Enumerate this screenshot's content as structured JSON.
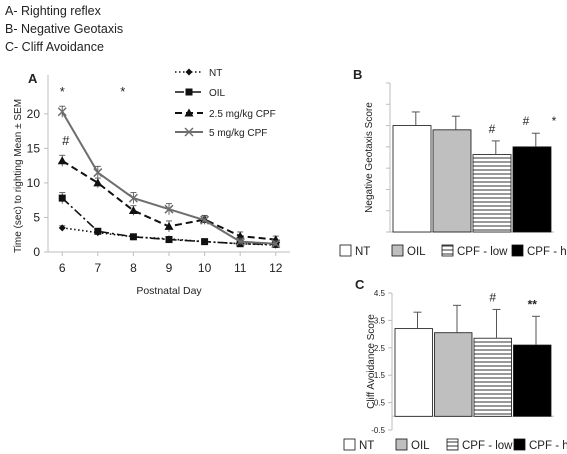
{
  "captions": [
    "A- Righting reflex",
    "B- Negative Geotaxis",
    "C- Cliff Avoidance"
  ],
  "chart_data": [
    {
      "type": "line",
      "panel_label": "A",
      "title": "",
      "xlabel": "Postnatal Day",
      "ylabel": "Time (sec) to righting Mean ± SEM",
      "x": [
        6,
        7,
        8,
        9,
        10,
        11,
        12
      ],
      "xlim": [
        5.6,
        12.4
      ],
      "ylim": [
        0,
        22
      ],
      "yticks": [
        0,
        5,
        10,
        15,
        20
      ],
      "legend_position": "top-right",
      "series": [
        {
          "name": "NT",
          "marker": "diamond",
          "line_style": "dotted",
          "values": [
            3.5,
            2.8,
            2.2,
            1.9,
            1.5,
            1.2,
            1.0
          ],
          "errors": [
            0.3,
            0.3,
            0.3,
            0.3,
            0.3,
            0.3,
            0.3
          ]
        },
        {
          "name": "OIL",
          "marker": "square",
          "line_style": "dashdot",
          "values": [
            7.8,
            3.0,
            2.2,
            1.8,
            1.5,
            1.2,
            1.1
          ],
          "errors": [
            0.8,
            0.4,
            0.3,
            0.3,
            0.3,
            0.2,
            0.2
          ]
        },
        {
          "name": "2.5 mg/kg CPF",
          "marker": "triangle",
          "line_style": "dashed",
          "values": [
            13.2,
            10.0,
            6.0,
            3.7,
            4.7,
            2.3,
            1.8
          ],
          "errors": [
            0.8,
            0.7,
            0.7,
            0.8,
            0.6,
            0.6,
            0.5
          ]
        },
        {
          "name": "5 mg/kg CPF",
          "marker": "x",
          "line_style": "solid",
          "values": [
            20.3,
            11.5,
            7.8,
            6.2,
            4.6,
            1.5,
            1.2
          ],
          "errors": [
            0.8,
            0.9,
            0.8,
            0.8,
            0.6,
            0.5,
            0.4
          ]
        }
      ],
      "annotations": [
        {
          "text": "*",
          "x": 6,
          "y": 23.3
        },
        {
          "text": "*",
          "x": 7.7,
          "y": 23.3
        },
        {
          "text": "#",
          "x": 6.1,
          "y": 16.2
        }
      ]
    },
    {
      "type": "bar",
      "panel_label": "B",
      "title": "",
      "ylabel": "Negative Geotaxis Score",
      "categories": [
        "NT",
        "OIL",
        "CPF - low",
        "CPF - high"
      ],
      "values": [
        2.5,
        2.4,
        1.82,
        2.0
      ],
      "errors": [
        0.32,
        0.32,
        0.32,
        0.32
      ],
      "ylim": [
        0,
        3.5
      ],
      "legend_position": "bottom",
      "annotations": [
        {
          "category": "CPF - low",
          "text": "#"
        },
        {
          "category": "CPF - high",
          "text": "#"
        },
        {
          "category": "CPF - high",
          "text": "*"
        }
      ]
    },
    {
      "type": "bar",
      "panel_label": "C",
      "title": "",
      "ylabel": "Cliff Avoidance Score",
      "categories": [
        "NT",
        "OIL",
        "CPF - low",
        "CPF - high"
      ],
      "values": [
        3.2,
        3.05,
        2.85,
        2.6
      ],
      "errors": [
        0.6,
        1.0,
        1.05,
        1.05
      ],
      "ylim": [
        -0.5,
        4.5
      ],
      "yticks": [
        -0.5,
        0.5,
        1.5,
        2.5,
        3.5,
        4.5
      ],
      "legend_position": "bottom",
      "annotations": [
        {
          "category": "CPF - low",
          "text": "#"
        },
        {
          "category": "CPF - high",
          "text": "**"
        }
      ]
    }
  ],
  "colors": {
    "axis": "#bdbdbd",
    "text": "#222222",
    "nt_fill": "#ffffff",
    "oil_fill": "#bfbfbf",
    "cpf_high_fill": "#000000",
    "line_a": "#111111",
    "line_b": "#6e6e6e",
    "error_bar": "#555555"
  }
}
